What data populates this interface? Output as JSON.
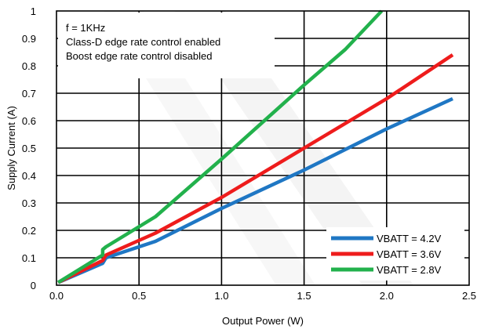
{
  "chart_data": {
    "type": "line",
    "title": "",
    "xlabel": "Output Power (W)",
    "ylabel": "Supply Current (A)",
    "xlim": [
      0,
      2.5
    ],
    "ylim": [
      0,
      1
    ],
    "x_ticks": [
      "0.0",
      "0.5",
      "1.0",
      "1.5",
      "2.0",
      "2.5"
    ],
    "y_ticks": [
      "0",
      "0.1",
      "0.2",
      "0.3",
      "0.4",
      "0.5",
      "0.6",
      "0.7",
      "0.8",
      "0.9",
      "1"
    ],
    "grid": true,
    "legend_position": "bottom-right",
    "annotations": [
      "f = 1KHz",
      "Class-D edge rate control enabled",
      "Boost edge rate control disabled"
    ],
    "series": [
      {
        "name": "VBATT = 4.2V",
        "color": "#1f77c4",
        "x": [
          0.01,
          0.28,
          0.3,
          0.6,
          1.0,
          1.5,
          2.0,
          2.4
        ],
        "y": [
          0.01,
          0.08,
          0.1,
          0.16,
          0.28,
          0.42,
          0.57,
          0.68
        ]
      },
      {
        "name": "VBATT = 3.6V",
        "color": "#ee1c1c",
        "x": [
          0.01,
          0.28,
          0.3,
          0.6,
          1.0,
          1.5,
          2.0,
          2.4
        ],
        "y": [
          0.01,
          0.09,
          0.11,
          0.19,
          0.32,
          0.5,
          0.68,
          0.84
        ]
      },
      {
        "name": "VBATT = 2.8V",
        "color": "#22b14c",
        "x": [
          0.01,
          0.28,
          0.28,
          0.3,
          0.6,
          1.0,
          1.5,
          1.75,
          1.97
        ],
        "y": [
          0.01,
          0.11,
          0.13,
          0.14,
          0.25,
          0.46,
          0.73,
          0.86,
          1.0
        ]
      }
    ]
  }
}
